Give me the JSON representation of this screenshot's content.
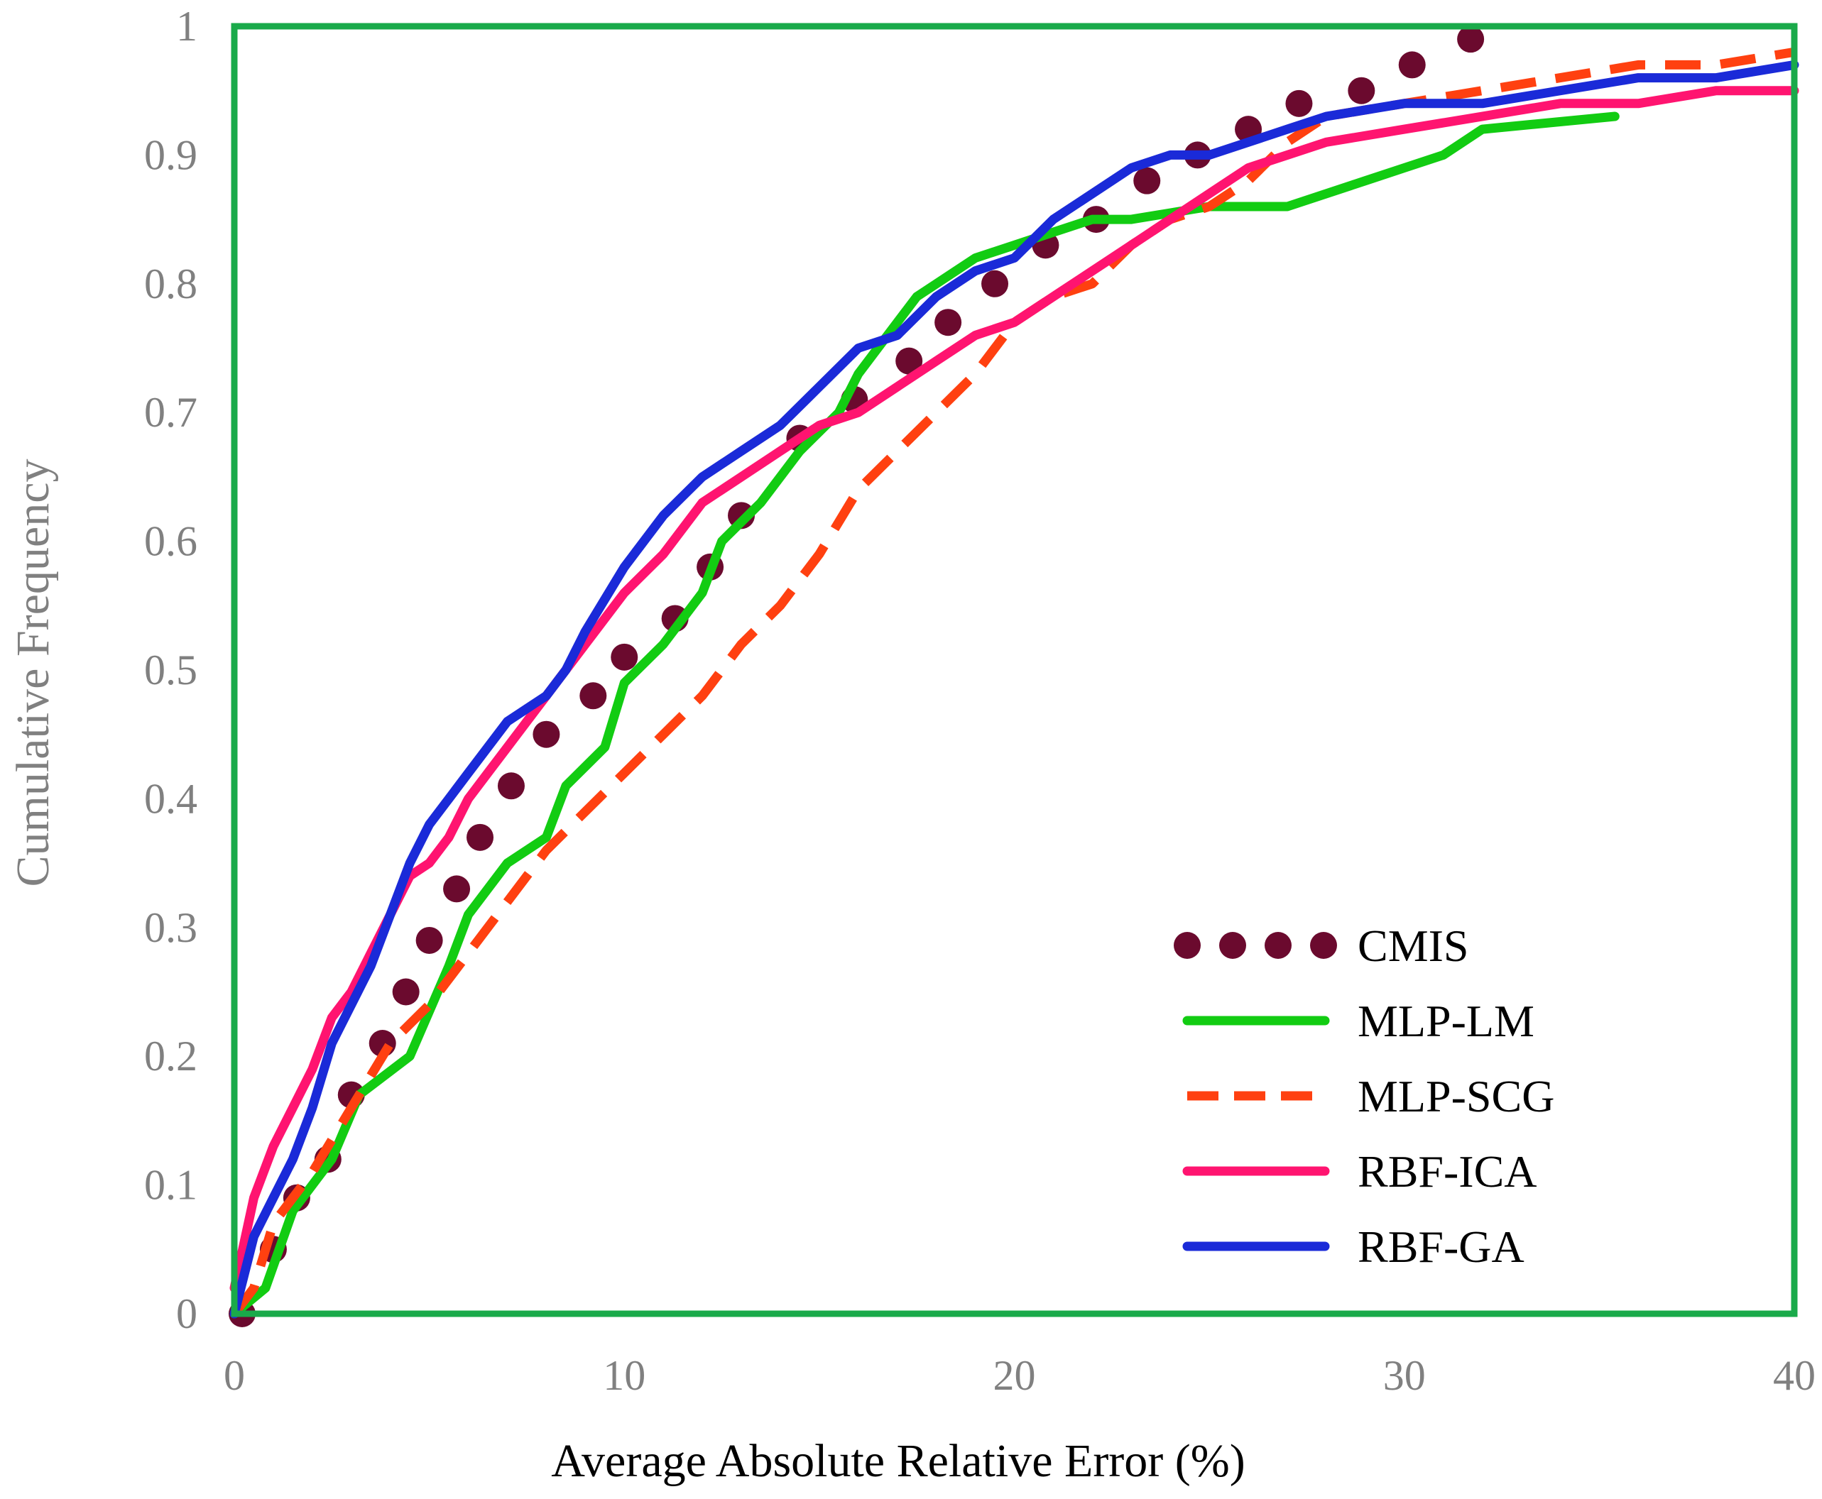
{
  "chart_data": {
    "type": "line",
    "title": "",
    "xlabel": "Average Absolute Relative Error (%)",
    "ylabel": "Cumulative Frequency",
    "xlim": [
      0,
      40
    ],
    "ylim": [
      0,
      1
    ],
    "x_ticks": [
      "0",
      "10",
      "20",
      "30",
      "40"
    ],
    "y_ticks": [
      "0",
      "0.1",
      "0.2",
      "0.3",
      "0.4",
      "0.5",
      "0.6",
      "0.7",
      "0.8",
      "0.9",
      "1"
    ],
    "grid": false,
    "legend_position": "bottom-right",
    "frame_color": "#1aaa4a",
    "series": [
      {
        "name": "CMIS",
        "style": "dotted",
        "color": "#6b0a2e",
        "x": [
          0.2,
          1.0,
          1.6,
          2.4,
          3.0,
          3.8,
          4.4,
          5.0,
          5.7,
          6.3,
          7.1,
          8.0,
          9.2,
          10.0,
          11.3,
          12.2,
          13.0,
          14.5,
          15.9,
          17.3,
          18.3,
          19.5,
          20.8,
          22.1,
          23.4,
          24.7,
          26.0,
          27.3,
          28.9,
          30.2,
          31.7
        ],
        "y": [
          0.0,
          0.05,
          0.09,
          0.12,
          0.17,
          0.21,
          0.25,
          0.29,
          0.33,
          0.37,
          0.41,
          0.45,
          0.48,
          0.51,
          0.54,
          0.58,
          0.62,
          0.68,
          0.71,
          0.74,
          0.77,
          0.8,
          0.83,
          0.85,
          0.88,
          0.9,
          0.92,
          0.94,
          0.95,
          0.97,
          0.99
        ]
      },
      {
        "name": "MLP-LM",
        "style": "solid",
        "color": "#12cc12",
        "x": [
          0,
          0.8,
          1.5,
          2.5,
          3.2,
          4.5,
          5.5,
          6.0,
          7.0,
          8.0,
          8.5,
          9.5,
          10.0,
          11.0,
          12.0,
          12.5,
          13.5,
          14.5,
          15.5,
          16.0,
          17.0,
          17.5,
          18.0,
          19.0,
          20.0,
          21.0,
          22.0,
          23.0,
          25.0,
          27.0,
          29.0,
          30.0,
          31.0,
          32.0,
          35.4
        ],
        "y": [
          0,
          0.02,
          0.08,
          0.12,
          0.17,
          0.2,
          0.27,
          0.31,
          0.35,
          0.37,
          0.41,
          0.44,
          0.49,
          0.52,
          0.56,
          0.6,
          0.63,
          0.67,
          0.7,
          0.73,
          0.77,
          0.79,
          0.8,
          0.82,
          0.83,
          0.84,
          0.85,
          0.85,
          0.86,
          0.86,
          0.88,
          0.89,
          0.9,
          0.92,
          0.93
        ]
      },
      {
        "name": "MLP-SCG",
        "style": "dashed",
        "color": "#ff4010",
        "x": [
          0,
          0.5,
          1.0,
          2.0,
          3.0,
          4.0,
          5.0,
          6.0,
          7.0,
          8.0,
          9.0,
          10.0,
          11.0,
          12.0,
          13.0,
          14.0,
          15.0,
          16.0,
          17.0,
          18.0,
          19.0,
          20.0,
          21.0,
          22.0,
          23.0,
          24.0,
          25.0,
          26.0,
          27.0,
          28.0,
          30.0,
          32.0,
          34.0,
          36.0,
          38.0,
          40.0
        ],
        "y": [
          0,
          0.02,
          0.07,
          0.11,
          0.16,
          0.21,
          0.24,
          0.28,
          0.32,
          0.36,
          0.39,
          0.42,
          0.45,
          0.48,
          0.52,
          0.55,
          0.59,
          0.64,
          0.67,
          0.7,
          0.73,
          0.77,
          0.79,
          0.8,
          0.83,
          0.85,
          0.86,
          0.88,
          0.91,
          0.93,
          0.94,
          0.95,
          0.96,
          0.97,
          0.97,
          0.98
        ]
      },
      {
        "name": "RBF-ICA",
        "style": "solid",
        "color": "#ff1470",
        "x": [
          0,
          0.5,
          1.0,
          1.5,
          2.0,
          2.5,
          3.0,
          3.5,
          4.0,
          4.5,
          5.0,
          5.5,
          6.0,
          6.5,
          7.0,
          7.5,
          8.0,
          9.0,
          10.0,
          11.0,
          12.0,
          13.0,
          14.0,
          15.0,
          16.0,
          17.0,
          18.0,
          19.0,
          20.0,
          21.0,
          22.0,
          23.0,
          24.0,
          25.0,
          26.0,
          27.0,
          28.0,
          30.0,
          32.0,
          34.0,
          36.0,
          38.0,
          40.0
        ],
        "y": [
          0.02,
          0.09,
          0.13,
          0.16,
          0.19,
          0.23,
          0.25,
          0.28,
          0.31,
          0.34,
          0.35,
          0.37,
          0.4,
          0.42,
          0.44,
          0.46,
          0.48,
          0.52,
          0.56,
          0.59,
          0.63,
          0.65,
          0.67,
          0.69,
          0.7,
          0.72,
          0.74,
          0.76,
          0.77,
          0.79,
          0.81,
          0.83,
          0.85,
          0.87,
          0.89,
          0.9,
          0.91,
          0.92,
          0.93,
          0.94,
          0.94,
          0.95,
          0.95
        ]
      },
      {
        "name": "RBF-GA",
        "style": "solid",
        "color": "#1a2ad8",
        "x": [
          0,
          0.5,
          1.0,
          1.5,
          2.0,
          2.5,
          3.0,
          3.5,
          4.0,
          4.5,
          5.0,
          5.5,
          6.0,
          6.5,
          7.0,
          7.5,
          8.0,
          8.5,
          9.0,
          10.0,
          11.0,
          12.0,
          13.0,
          14.0,
          15.0,
          16.0,
          17.0,
          18.0,
          19.0,
          20.0,
          21.0,
          22.0,
          23.0,
          24.0,
          25.0,
          26.0,
          27.0,
          28.0,
          30.0,
          32.0,
          34.0,
          36.0,
          38.0,
          40.0
        ],
        "y": [
          0,
          0.06,
          0.09,
          0.12,
          0.16,
          0.21,
          0.24,
          0.27,
          0.31,
          0.35,
          0.38,
          0.4,
          0.42,
          0.44,
          0.46,
          0.47,
          0.48,
          0.5,
          0.53,
          0.58,
          0.62,
          0.65,
          0.67,
          0.69,
          0.72,
          0.75,
          0.76,
          0.79,
          0.81,
          0.82,
          0.85,
          0.87,
          0.89,
          0.9,
          0.9,
          0.91,
          0.92,
          0.93,
          0.94,
          0.94,
          0.95,
          0.96,
          0.96,
          0.97
        ]
      }
    ]
  }
}
